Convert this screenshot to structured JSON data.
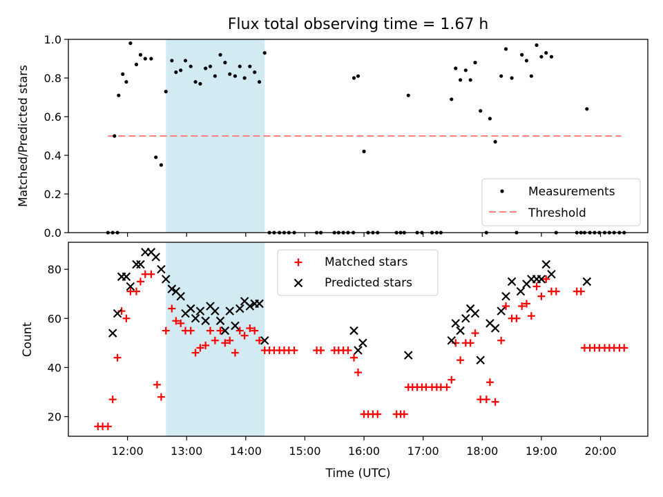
{
  "title": "Flux total observing time = 1.67 h",
  "colors": {
    "band": "#add8e6",
    "matched": "#ff0000",
    "predicted": "#000000",
    "threshold": "#ff7f7f",
    "measure": "#000000"
  },
  "chart_data": [
    {
      "type": "scatter",
      "ylabel": "Matched/Predicted stars",
      "xlim": [
        11.0,
        20.8
      ],
      "ylim": [
        0.0,
        1.0
      ],
      "yticks": [
        "0.0",
        "0.2",
        "0.4",
        "0.6",
        "0.8",
        "1.0"
      ],
      "shaded_span_hours": [
        12.65,
        14.32
      ],
      "threshold": 0.5,
      "threshold_x": [
        11.67,
        20.35
      ],
      "legend": {
        "placement": "lower-right",
        "entries": [
          "Measurements",
          "Threshold"
        ]
      },
      "series": [
        {
          "name": "Measurements",
          "points": [
            [
              11.67,
              0.0
            ],
            [
              11.75,
              0.0
            ],
            [
              11.83,
              0.0
            ],
            [
              11.78,
              0.5
            ],
            [
              11.85,
              0.71
            ],
            [
              11.92,
              0.82
            ],
            [
              11.98,
              0.78
            ],
            [
              12.05,
              0.98
            ],
            [
              12.15,
              0.87
            ],
            [
              12.22,
              0.92
            ],
            [
              12.3,
              0.9
            ],
            [
              12.4,
              0.9
            ],
            [
              12.48,
              0.39
            ],
            [
              12.57,
              0.35
            ],
            [
              12.65,
              0.73
            ],
            [
              12.75,
              0.89
            ],
            [
              12.82,
              0.83
            ],
            [
              12.9,
              0.84
            ],
            [
              12.98,
              0.89
            ],
            [
              13.07,
              0.86
            ],
            [
              13.15,
              0.78
            ],
            [
              13.23,
              0.77
            ],
            [
              13.32,
              0.85
            ],
            [
              13.4,
              0.86
            ],
            [
              13.48,
              0.81
            ],
            [
              13.57,
              0.92
            ],
            [
              13.65,
              0.88
            ],
            [
              13.73,
              0.82
            ],
            [
              13.82,
              0.81
            ],
            [
              13.9,
              0.86
            ],
            [
              13.98,
              0.8
            ],
            [
              14.07,
              0.86
            ],
            [
              14.15,
              0.83
            ],
            [
              14.23,
              0.78
            ],
            [
              14.32,
              0.93
            ],
            [
              14.4,
              0.0
            ],
            [
              14.48,
              0.0
            ],
            [
              14.57,
              0.0
            ],
            [
              14.65,
              0.0
            ],
            [
              14.73,
              0.0
            ],
            [
              14.82,
              0.0
            ],
            [
              15.2,
              0.0
            ],
            [
              15.27,
              0.0
            ],
            [
              15.5,
              0.0
            ],
            [
              15.57,
              0.0
            ],
            [
              15.65,
              0.0
            ],
            [
              15.73,
              0.0
            ],
            [
              15.82,
              0.0
            ],
            [
              15.83,
              0.8
            ],
            [
              15.9,
              0.81
            ],
            [
              16.0,
              0.42
            ],
            [
              16.07,
              0.0
            ],
            [
              16.15,
              0.0
            ],
            [
              16.23,
              0.0
            ],
            [
              16.55,
              0.0
            ],
            [
              16.62,
              0.0
            ],
            [
              16.68,
              0.0
            ],
            [
              16.75,
              0.71
            ],
            [
              16.9,
              0.0
            ],
            [
              16.98,
              0.0
            ],
            [
              17.15,
              0.0
            ],
            [
              17.23,
              0.0
            ],
            [
              17.3,
              0.0
            ],
            [
              17.48,
              0.69
            ],
            [
              17.55,
              0.85
            ],
            [
              17.63,
              0.79
            ],
            [
              17.72,
              0.84
            ],
            [
              17.8,
              0.79
            ],
            [
              17.88,
              0.88
            ],
            [
              17.97,
              0.63
            ],
            [
              18.07,
              0.0
            ],
            [
              18.13,
              0.59
            ],
            [
              18.22,
              0.47
            ],
            [
              18.32,
              0.81
            ],
            [
              18.4,
              0.95
            ],
            [
              18.5,
              0.8
            ],
            [
              18.58,
              0.0
            ],
            [
              18.67,
              0.92
            ],
            [
              18.75,
              0.89
            ],
            [
              18.83,
              0.81
            ],
            [
              18.92,
              0.97
            ],
            [
              19.0,
              0.91
            ],
            [
              19.08,
              0.93
            ],
            [
              19.17,
              0.91
            ],
            [
              19.25,
              0.0
            ],
            [
              19.6,
              0.0
            ],
            [
              19.67,
              0.0
            ],
            [
              19.73,
              0.0
            ],
            [
              19.77,
              0.64
            ],
            [
              19.82,
              0.0
            ],
            [
              19.9,
              0.0
            ],
            [
              19.98,
              0.0
            ],
            [
              20.07,
              0.0
            ],
            [
              20.15,
              0.0
            ],
            [
              20.23,
              0.0
            ],
            [
              20.32,
              0.0
            ],
            [
              20.4,
              0.0
            ]
          ]
        }
      ]
    },
    {
      "type": "scatter",
      "xlabel": "Time (UTC)",
      "ylabel": "Count",
      "xlim": [
        11.0,
        20.8
      ],
      "ylim": [
        12,
        91
      ],
      "xticks": [
        12,
        13,
        14,
        15,
        16,
        17,
        18,
        19,
        20
      ],
      "xtick_labels": [
        "12:00",
        "13:00",
        "14:00",
        "15:00",
        "16:00",
        "17:00",
        "18:00",
        "19:00",
        "20:00"
      ],
      "yticks": [
        "20",
        "40",
        "60",
        "80"
      ],
      "shaded_span_hours": [
        12.65,
        14.32
      ],
      "legend": {
        "placement": "top-center",
        "entries": [
          "Matched stars",
          "Predicted stars"
        ]
      },
      "series": [
        {
          "name": "Matched stars",
          "points": [
            [
              11.5,
              16
            ],
            [
              11.58,
              16
            ],
            [
              11.67,
              16
            ],
            [
              11.75,
              27
            ],
            [
              11.83,
              44
            ],
            [
              11.9,
              63
            ],
            [
              11.98,
              60
            ],
            [
              12.05,
              71
            ],
            [
              12.15,
              71
            ],
            [
              12.22,
              75
            ],
            [
              12.3,
              78
            ],
            [
              12.4,
              78
            ],
            [
              12.5,
              33
            ],
            [
              12.57,
              28
            ],
            [
              12.65,
              55
            ],
            [
              12.75,
              64
            ],
            [
              12.82,
              59
            ],
            [
              12.9,
              58
            ],
            [
              12.98,
              55
            ],
            [
              13.07,
              55
            ],
            [
              13.15,
              46
            ],
            [
              13.23,
              48
            ],
            [
              13.32,
              49
            ],
            [
              13.4,
              55
            ],
            [
              13.48,
              51
            ],
            [
              13.57,
              55
            ],
            [
              13.65,
              50
            ],
            [
              13.73,
              51
            ],
            [
              13.82,
              46
            ],
            [
              13.9,
              55
            ],
            [
              13.98,
              53
            ],
            [
              14.07,
              56
            ],
            [
              14.15,
              55
            ],
            [
              14.23,
              51
            ],
            [
              14.32,
              47
            ],
            [
              14.4,
              47
            ],
            [
              14.48,
              47
            ],
            [
              14.57,
              47
            ],
            [
              14.65,
              47
            ],
            [
              14.73,
              47
            ],
            [
              14.82,
              47
            ],
            [
              15.2,
              47
            ],
            [
              15.27,
              47
            ],
            [
              15.5,
              47
            ],
            [
              15.57,
              47
            ],
            [
              15.65,
              47
            ],
            [
              15.73,
              47
            ],
            [
              15.83,
              44
            ],
            [
              15.9,
              38
            ],
            [
              16.0,
              21
            ],
            [
              16.07,
              21
            ],
            [
              16.15,
              21
            ],
            [
              16.23,
              21
            ],
            [
              16.55,
              21
            ],
            [
              16.62,
              21
            ],
            [
              16.68,
              21
            ],
            [
              16.75,
              32
            ],
            [
              16.82,
              32
            ],
            [
              16.9,
              32
            ],
            [
              16.98,
              32
            ],
            [
              17.05,
              32
            ],
            [
              17.15,
              32
            ],
            [
              17.23,
              32
            ],
            [
              17.3,
              32
            ],
            [
              17.4,
              32
            ],
            [
              17.48,
              35
            ],
            [
              17.55,
              50
            ],
            [
              17.63,
              43
            ],
            [
              17.72,
              50
            ],
            [
              17.8,
              50
            ],
            [
              17.88,
              54
            ],
            [
              17.97,
              27
            ],
            [
              18.07,
              27
            ],
            [
              18.13,
              34
            ],
            [
              18.22,
              26
            ],
            [
              18.32,
              51
            ],
            [
              18.4,
              65
            ],
            [
              18.5,
              60
            ],
            [
              18.58,
              60
            ],
            [
              18.67,
              65
            ],
            [
              18.75,
              66
            ],
            [
              18.83,
              61
            ],
            [
              18.92,
              73
            ],
            [
              19.0,
              69
            ],
            [
              19.08,
              76
            ],
            [
              19.17,
              71
            ],
            [
              19.25,
              71
            ],
            [
              19.6,
              71
            ],
            [
              19.67,
              71
            ],
            [
              19.73,
              48
            ],
            [
              19.82,
              48
            ],
            [
              19.9,
              48
            ],
            [
              19.98,
              48
            ],
            [
              20.07,
              48
            ],
            [
              20.15,
              48
            ],
            [
              20.23,
              48
            ],
            [
              20.32,
              48
            ],
            [
              20.4,
              48
            ]
          ]
        },
        {
          "name": "Predicted stars",
          "points": [
            [
              11.75,
              54
            ],
            [
              11.83,
              62
            ],
            [
              11.9,
              77
            ],
            [
              11.98,
              77
            ],
            [
              12.05,
              73
            ],
            [
              12.15,
              82
            ],
            [
              12.22,
              82
            ],
            [
              12.3,
              87
            ],
            [
              12.4,
              87
            ],
            [
              12.48,
              85
            ],
            [
              12.57,
              80
            ],
            [
              12.65,
              76
            ],
            [
              12.75,
              72
            ],
            [
              12.82,
              71
            ],
            [
              12.9,
              69
            ],
            [
              12.98,
              62
            ],
            [
              13.07,
              64
            ],
            [
              13.15,
              60
            ],
            [
              13.23,
              63
            ],
            [
              13.32,
              59
            ],
            [
              13.4,
              65
            ],
            [
              13.48,
              63
            ],
            [
              13.57,
              59
            ],
            [
              13.65,
              55
            ],
            [
              13.73,
              63
            ],
            [
              13.82,
              57
            ],
            [
              13.9,
              64
            ],
            [
              13.98,
              67
            ],
            [
              14.07,
              65
            ],
            [
              14.15,
              66
            ],
            [
              14.23,
              66
            ],
            [
              14.32,
              51
            ],
            [
              15.83,
              55
            ],
            [
              15.9,
              47
            ],
            [
              15.98,
              50
            ],
            [
              16.75,
              45
            ],
            [
              17.48,
              51
            ],
            [
              17.55,
              58
            ],
            [
              17.63,
              55
            ],
            [
              17.72,
              60
            ],
            [
              17.8,
              64
            ],
            [
              17.88,
              62
            ],
            [
              17.97,
              43
            ],
            [
              18.13,
              58
            ],
            [
              18.22,
              56
            ],
            [
              18.32,
              63
            ],
            [
              18.4,
              69
            ],
            [
              18.5,
              75
            ],
            [
              18.65,
              71
            ],
            [
              18.75,
              74
            ],
            [
              18.83,
              76
            ],
            [
              18.92,
              76
            ],
            [
              19.0,
              76
            ],
            [
              19.08,
              82
            ],
            [
              19.17,
              78
            ],
            [
              19.77,
              75
            ]
          ]
        }
      ]
    }
  ]
}
